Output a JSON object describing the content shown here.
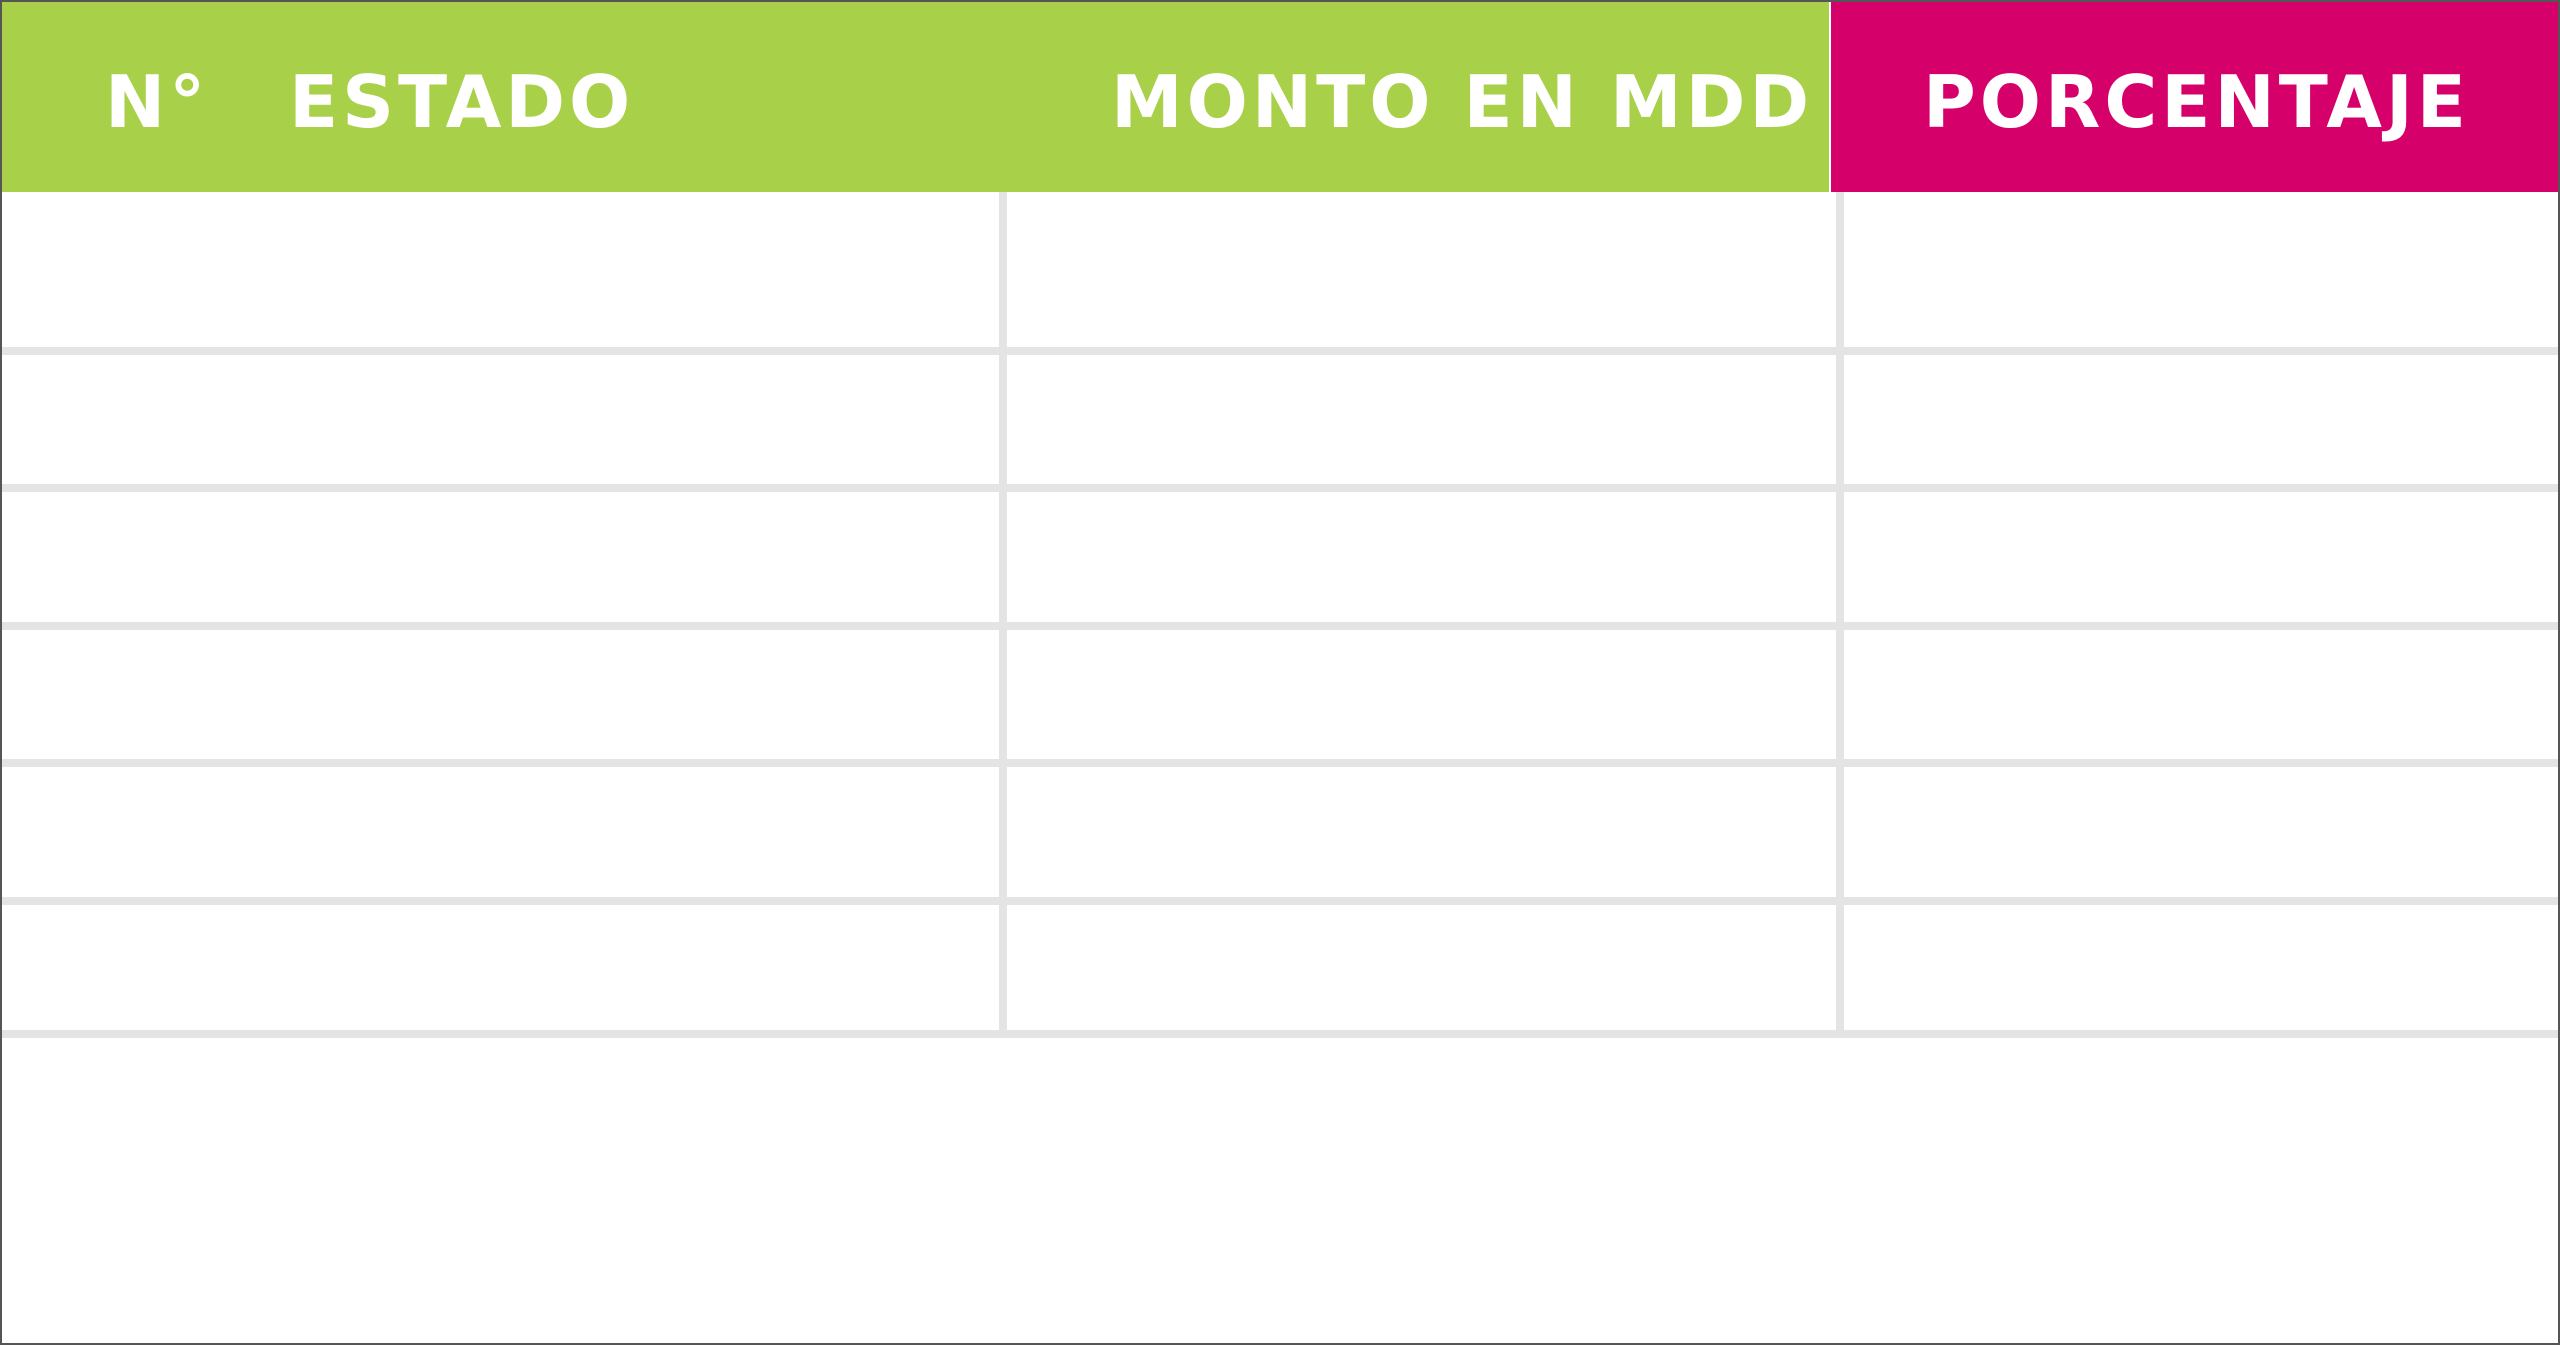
{
  "table": {
    "headers": {
      "number": "N°",
      "state": "ESTADO",
      "amount": "MONTO EN MDD",
      "percentage": "PORCENTAJE"
    },
    "rows": [
      {
        "number": "",
        "state": "",
        "amount": "",
        "percentage": ""
      },
      {
        "number": "",
        "state": "",
        "amount": "",
        "percentage": ""
      },
      {
        "number": "",
        "state": "",
        "amount": "",
        "percentage": ""
      },
      {
        "number": "",
        "state": "",
        "amount": "",
        "percentage": ""
      },
      {
        "number": "",
        "state": "",
        "amount": "",
        "percentage": ""
      },
      {
        "number": "",
        "state": "",
        "amount": "",
        "percentage": ""
      }
    ]
  },
  "colors": {
    "header_green": "#a8d149",
    "header_pink": "#d6006b",
    "grid_line": "#e4e4e4",
    "border": "#555555"
  }
}
